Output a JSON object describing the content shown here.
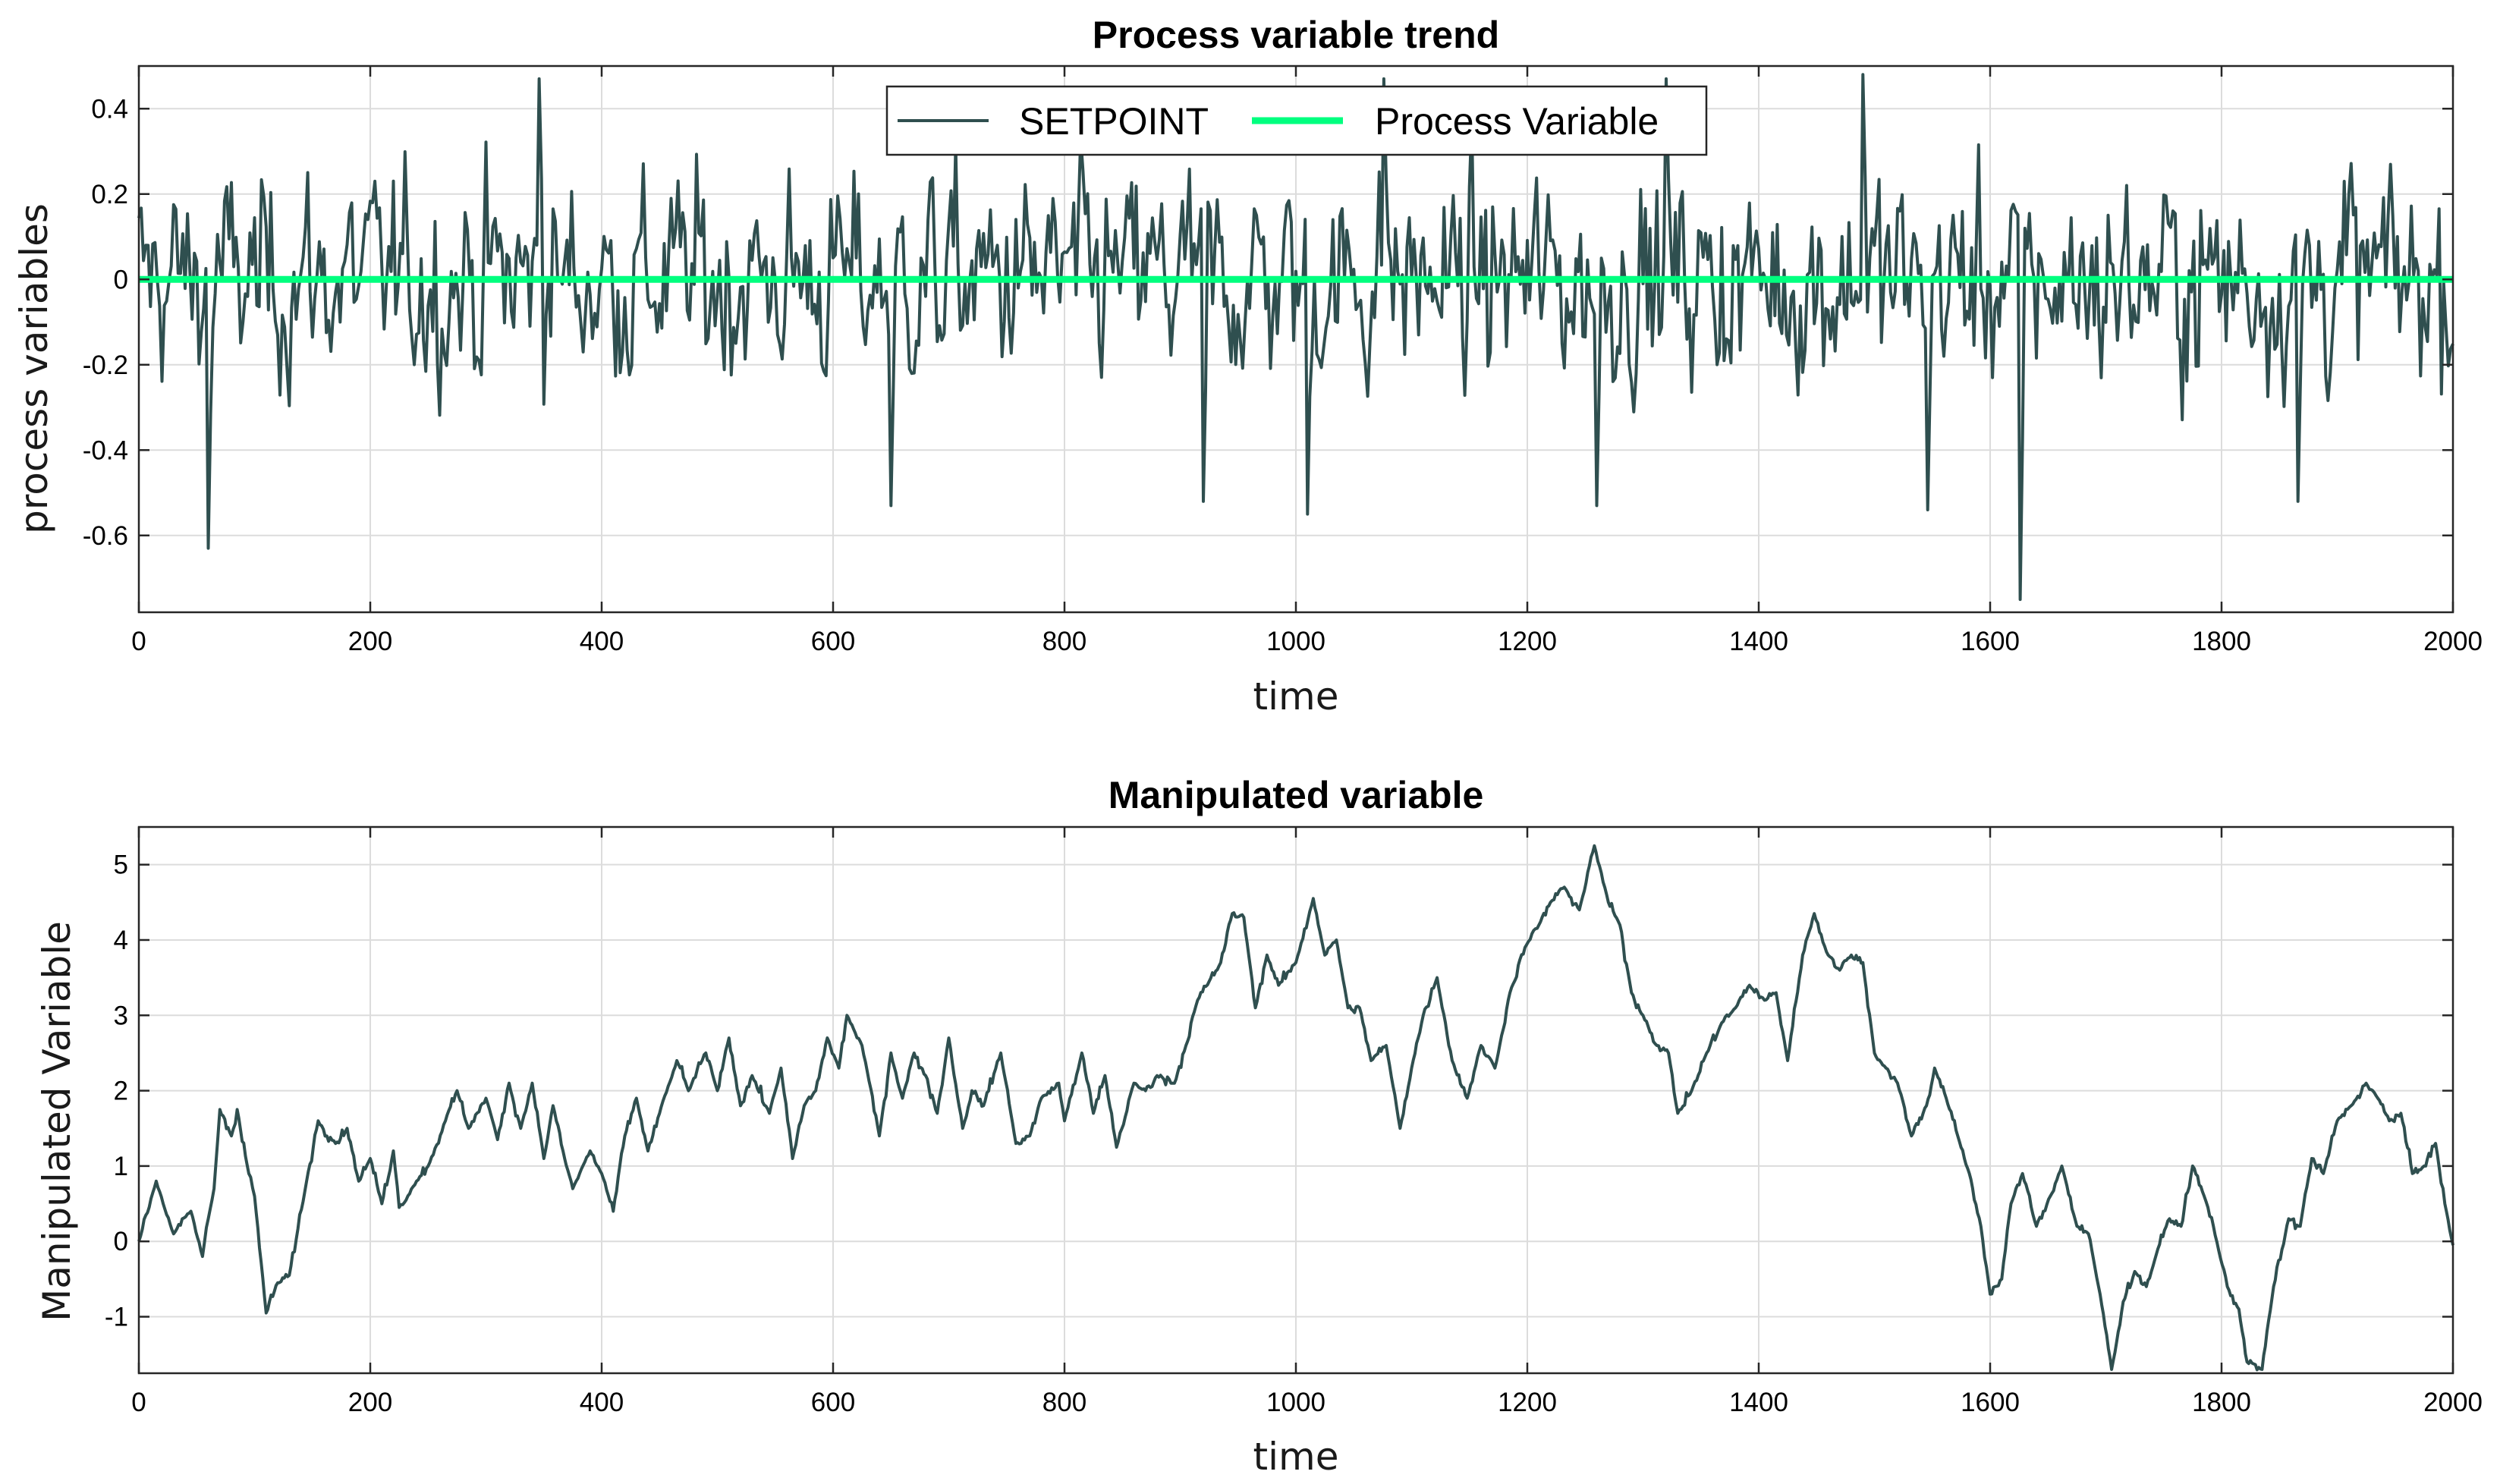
{
  "chart_data": [
    {
      "type": "line",
      "title": "Process variable trend",
      "xlabel": "time",
      "ylabel": "process variables",
      "xlim": [
        0,
        2000
      ],
      "ylim": [
        -0.78,
        0.5
      ],
      "xticks": [
        0,
        200,
        400,
        600,
        800,
        1000,
        1200,
        1400,
        1600,
        1800,
        2000
      ],
      "xtick_labels": [
        "0",
        "200",
        "400",
        "600",
        "800",
        "1000",
        "1200",
        "1400",
        "1600",
        "1800",
        "2000"
      ],
      "yticks": [
        -0.6,
        -0.4,
        -0.2,
        0,
        0.2,
        0.4
      ],
      "ytick_labels": [
        "-0.6",
        "-0.4",
        "-0.2",
        "0",
        "0.2",
        "0.4"
      ],
      "grid": true,
      "legend_position": "top-center",
      "series": [
        {
          "name": "SETPOINT",
          "color": "#2f4f4f",
          "kind": "noise",
          "sampling_step": 2,
          "noise_std": 0.17,
          "extremes": [
            [
              60,
              -0.63
            ],
            [
              345,
              0.47
            ],
            [
              650,
              -0.53
            ],
            [
              920,
              -0.52
            ],
            [
              1010,
              -0.55
            ],
            [
              1075,
              0.47
            ],
            [
              1260,
              -0.53
            ],
            [
              1320,
              0.47
            ],
            [
              1490,
              0.48
            ],
            [
              1545,
              -0.54
            ],
            [
              1625,
              -0.75
            ],
            [
              1865,
              -0.52
            ]
          ],
          "x": [
            0,
            2000
          ]
        },
        {
          "name": "Process Variable",
          "color": "#00ff7f",
          "x": [
            0,
            2000
          ],
          "values": [
            0,
            0
          ]
        }
      ]
    },
    {
      "type": "line",
      "title": "Manipulated variable",
      "xlabel": "time",
      "ylabel": "Manipulated Variable",
      "xlim": [
        0,
        2000
      ],
      "ylim": [
        -1.75,
        5.5
      ],
      "xticks": [
        0,
        200,
        400,
        600,
        800,
        1000,
        1200,
        1400,
        1600,
        1800,
        2000
      ],
      "xtick_labels": [
        "0",
        "200",
        "400",
        "600",
        "800",
        "1000",
        "1200",
        "1400",
        "1600",
        "1800",
        "2000"
      ],
      "yticks": [
        -1,
        0,
        1,
        2,
        3,
        4,
        5
      ],
      "ytick_labels": [
        "-1",
        "0",
        "1",
        "2",
        "3",
        "4",
        "5"
      ],
      "grid": true,
      "series": [
        {
          "name": "Manipulated Variable",
          "color": "#2f4f4f",
          "kind": "random-walk",
          "anchors": [
            [
              0,
              0
            ],
            [
              15,
              0.8
            ],
            [
              30,
              0.1
            ],
            [
              45,
              0.4
            ],
            [
              55,
              -0.2
            ],
            [
              60,
              0.3
            ],
            [
              65,
              0.7
            ],
            [
              70,
              1.75
            ],
            [
              80,
              1.4
            ],
            [
              85,
              1.75
            ],
            [
              95,
              0.9
            ],
            [
              100,
              0.6
            ],
            [
              110,
              -0.95
            ],
            [
              120,
              -0.55
            ],
            [
              130,
              -0.45
            ],
            [
              145,
              0.8
            ],
            [
              155,
              1.6
            ],
            [
              170,
              1.3
            ],
            [
              180,
              1.5
            ],
            [
              190,
              0.8
            ],
            [
              200,
              1.1
            ],
            [
              210,
              0.5
            ],
            [
              220,
              1.2
            ],
            [
              225,
              0.45
            ],
            [
              240,
              0.8
            ],
            [
              250,
              1.0
            ],
            [
              265,
              1.6
            ],
            [
              275,
              2.0
            ],
            [
              285,
              1.5
            ],
            [
              300,
              1.9
            ],
            [
              310,
              1.35
            ],
            [
              320,
              2.1
            ],
            [
              330,
              1.5
            ],
            [
              340,
              2.1
            ],
            [
              350,
              1.1
            ],
            [
              358,
              1.8
            ],
            [
              368,
              1.1
            ],
            [
              375,
              0.7
            ],
            [
              390,
              1.2
            ],
            [
              400,
              0.9
            ],
            [
              410,
              0.4
            ],
            [
              420,
              1.4
            ],
            [
              430,
              1.9
            ],
            [
              440,
              1.2
            ],
            [
              450,
              1.7
            ],
            [
              465,
              2.4
            ],
            [
              475,
              2.0
            ],
            [
              490,
              2.5
            ],
            [
              500,
              2.0
            ],
            [
              510,
              2.7
            ],
            [
              520,
              1.8
            ],
            [
              530,
              2.2
            ],
            [
              545,
              1.7
            ],
            [
              555,
              2.3
            ],
            [
              565,
              1.1
            ],
            [
              575,
              1.8
            ],
            [
              585,
              2.0
            ],
            [
              595,
              2.7
            ],
            [
              605,
              2.3
            ],
            [
              612,
              3.0
            ],
            [
              625,
              2.6
            ],
            [
              640,
              1.4
            ],
            [
              650,
              2.5
            ],
            [
              660,
              1.9
            ],
            [
              670,
              2.5
            ],
            [
              680,
              2.2
            ],
            [
              690,
              1.7
            ],
            [
              700,
              2.7
            ],
            [
              712,
              1.5
            ],
            [
              720,
              2.0
            ],
            [
              730,
              1.8
            ],
            [
              745,
              2.5
            ],
            [
              758,
              1.3
            ],
            [
              770,
              1.4
            ],
            [
              780,
              1.9
            ],
            [
              795,
              2.1
            ],
            [
              800,
              1.6
            ],
            [
              815,
              2.5
            ],
            [
              825,
              1.7
            ],
            [
              835,
              2.2
            ],
            [
              845,
              1.25
            ],
            [
              860,
              2.1
            ],
            [
              870,
              2.0
            ],
            [
              880,
              2.2
            ],
            [
              895,
              2.1
            ],
            [
              905,
              2.6
            ],
            [
              915,
              3.2
            ],
            [
              925,
              3.45
            ],
            [
              935,
              3.7
            ],
            [
              945,
              4.35
            ],
            [
              955,
              4.3
            ],
            [
              965,
              3.1
            ],
            [
              975,
              3.8
            ],
            [
              985,
              3.4
            ],
            [
              1000,
              3.7
            ],
            [
              1015,
              4.55
            ],
            [
              1025,
              3.8
            ],
            [
              1035,
              4.0
            ],
            [
              1045,
              3.1
            ],
            [
              1055,
              3.1
            ],
            [
              1065,
              2.4
            ],
            [
              1078,
              2.6
            ],
            [
              1090,
              1.5
            ],
            [
              1100,
              2.3
            ],
            [
              1110,
              3.0
            ],
            [
              1122,
              3.5
            ],
            [
              1135,
              2.4
            ],
            [
              1148,
              1.9
            ],
            [
              1160,
              2.6
            ],
            [
              1172,
              2.3
            ],
            [
              1185,
              3.3
            ],
            [
              1198,
              3.9
            ],
            [
              1210,
              4.2
            ],
            [
              1220,
              4.5
            ],
            [
              1232,
              4.7
            ],
            [
              1245,
              4.4
            ],
            [
              1258,
              5.25
            ],
            [
              1270,
              4.5
            ],
            [
              1280,
              4.2
            ],
            [
              1290,
              3.3
            ],
            [
              1300,
              3.0
            ],
            [
              1312,
              2.6
            ],
            [
              1322,
              2.5
            ],
            [
              1330,
              1.7
            ],
            [
              1342,
              2.0
            ],
            [
              1355,
              2.5
            ],
            [
              1368,
              2.9
            ],
            [
              1380,
              3.1
            ],
            [
              1392,
              3.4
            ],
            [
              1405,
              3.2
            ],
            [
              1415,
              3.3
            ],
            [
              1425,
              2.4
            ],
            [
              1438,
              3.8
            ],
            [
              1448,
              4.35
            ],
            [
              1460,
              3.8
            ],
            [
              1470,
              3.6
            ],
            [
              1480,
              3.8
            ],
            [
              1490,
              3.7
            ],
            [
              1500,
              2.5
            ],
            [
              1510,
              2.3
            ],
            [
              1520,
              2.1
            ],
            [
              1532,
              1.4
            ],
            [
              1545,
              1.8
            ],
            [
              1552,
              2.3
            ],
            [
              1562,
              1.9
            ],
            [
              1572,
              1.4
            ],
            [
              1582,
              0.9
            ],
            [
              1592,
              0.2
            ],
            [
              1600,
              -0.7
            ],
            [
              1610,
              -0.5
            ],
            [
              1618,
              0.5
            ],
            [
              1628,
              0.9
            ],
            [
              1640,
              0.2
            ],
            [
              1652,
              0.6
            ],
            [
              1662,
              1.0
            ],
            [
              1675,
              0.2
            ],
            [
              1685,
              0.1
            ],
            [
              1695,
              -0.7
            ],
            [
              1705,
              -1.7
            ],
            [
              1715,
              -0.8
            ],
            [
              1725,
              -0.4
            ],
            [
              1735,
              -0.6
            ],
            [
              1745,
              -0.1
            ],
            [
              1755,
              0.3
            ],
            [
              1765,
              0.2
            ],
            [
              1775,
              1.0
            ],
            [
              1785,
              0.6
            ],
            [
              1793,
              0.2
            ],
            [
              1805,
              -0.6
            ],
            [
              1815,
              -0.9
            ],
            [
              1822,
              -1.6
            ],
            [
              1835,
              -1.7
            ],
            [
              1845,
              -0.6
            ],
            [
              1858,
              0.3
            ],
            [
              1868,
              0.2
            ],
            [
              1878,
              1.1
            ],
            [
              1888,
              0.9
            ],
            [
              1900,
              1.6
            ],
            [
              1912,
              1.8
            ],
            [
              1925,
              2.1
            ],
            [
              1935,
              1.9
            ],
            [
              1945,
              1.6
            ],
            [
              1955,
              1.7
            ],
            [
              1965,
              0.9
            ],
            [
              1975,
              1.0
            ],
            [
              1985,
              1.3
            ],
            [
              1993,
              0.5
            ],
            [
              2000,
              -0.05
            ]
          ]
        }
      ]
    }
  ]
}
